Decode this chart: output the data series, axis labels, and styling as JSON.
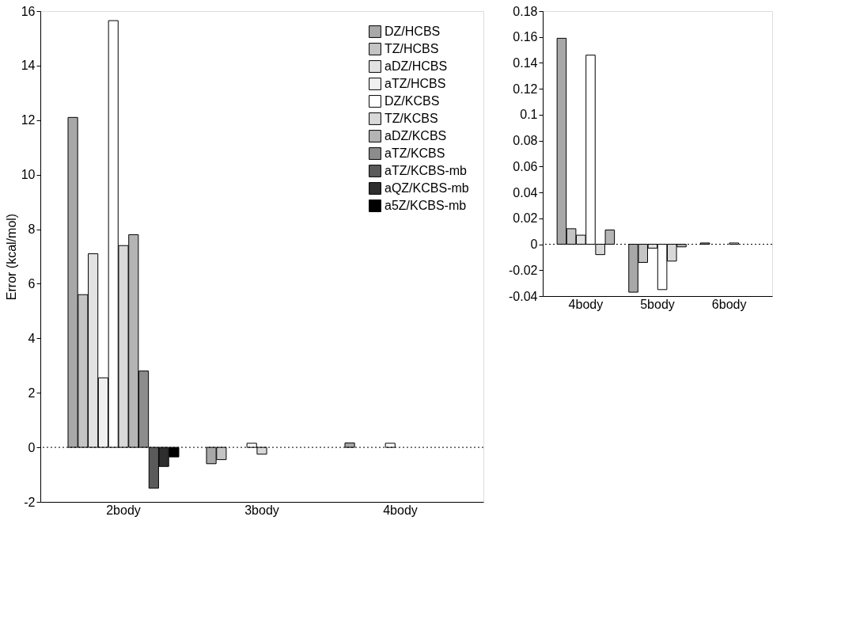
{
  "chart_data": [
    {
      "type": "bar",
      "ylabel": "Error (kcal/mol)",
      "categories": [
        "2body",
        "3body",
        "4body"
      ],
      "ylim": [
        -2,
        16
      ],
      "yticks": [
        -2,
        0,
        2,
        4,
        6,
        8,
        10,
        12,
        14,
        16
      ],
      "grid": false,
      "legend": "top right",
      "ref_lines": [
        {
          "axis": "y",
          "value": 0,
          "line_style": "dotted",
          "color": "#000000"
        }
      ],
      "series": [
        {
          "name": "DZ/HCBS",
          "color": "#a8a8a8",
          "values": [
            12.1,
            -0.6,
            0.16
          ]
        },
        {
          "name": "TZ/HCBS",
          "color": "#c4c4c4",
          "values": [
            5.6,
            -0.45,
            null
          ]
        },
        {
          "name": "aDZ/HCBS",
          "color": "#e2e2e2",
          "values": [
            7.1,
            null,
            null
          ]
        },
        {
          "name": "aTZ/HCBS",
          "color": "#f0f0f0",
          "values": [
            2.55,
            null,
            null
          ]
        },
        {
          "name": "DZ/KCBS",
          "color": "#ffffff",
          "values": [
            15.65,
            0.15,
            0.15
          ]
        },
        {
          "name": "TZ/KCBS",
          "color": "#d8d8d8",
          "values": [
            7.4,
            -0.25,
            null
          ]
        },
        {
          "name": "aDZ/KCBS",
          "color": "#b4b4b4",
          "values": [
            7.8,
            null,
            null
          ]
        },
        {
          "name": "aTZ/KCBS",
          "color": "#8c8c8c",
          "values": [
            2.8,
            null,
            null
          ]
        },
        {
          "name": "aTZ/KCBS-mb",
          "color": "#5a5a5a",
          "values": [
            -1.5,
            null,
            null
          ]
        },
        {
          "name": "aQZ/KCBS-mb",
          "color": "#2e2e2e",
          "values": [
            -0.7,
            null,
            null
          ]
        },
        {
          "name": "a5Z/KCBS-mb",
          "color": "#000000",
          "values": [
            -0.35,
            null,
            null
          ]
        }
      ]
    },
    {
      "type": "bar",
      "categories": [
        "4body",
        "5body",
        "6body"
      ],
      "ylim": [
        -0.04,
        0.18
      ],
      "yticks": [
        -0.04,
        -0.02,
        0,
        0.02,
        0.04,
        0.06,
        0.08,
        0.1,
        0.12,
        0.14,
        0.16,
        0.18
      ],
      "grid": false,
      "legend": false,
      "ref_lines": [
        {
          "axis": "y",
          "value": 0,
          "line_style": "dotted",
          "color": "#000000"
        }
      ],
      "series": [
        {
          "color": "#a8a8a8",
          "values": [
            0.159,
            -0.037,
            0.001
          ]
        },
        {
          "color": "#c4c4c4",
          "values": [
            0.012,
            -0.014,
            null
          ]
        },
        {
          "color": "#e2e2e2",
          "values": [
            0.007,
            -0.003,
            null
          ]
        },
        {
          "color": "#f0f0f0",
          "values": [
            null,
            null,
            null
          ]
        },
        {
          "color": "#ffffff",
          "values": [
            0.146,
            -0.035,
            0.001
          ]
        },
        {
          "color": "#d8d8d8",
          "values": [
            -0.008,
            -0.013,
            null
          ]
        },
        {
          "color": "#b4b4b4",
          "values": [
            0.011,
            -0.002,
            null
          ]
        },
        {
          "color": "#8c8c8c",
          "values": [
            null,
            null,
            null
          ]
        },
        {
          "color": "#5a5a5a",
          "values": [
            null,
            null,
            null
          ]
        },
        {
          "color": "#2e2e2e",
          "values": [
            null,
            null,
            null
          ]
        },
        {
          "color": "#000000",
          "values": [
            null,
            null,
            null
          ]
        }
      ]
    }
  ]
}
